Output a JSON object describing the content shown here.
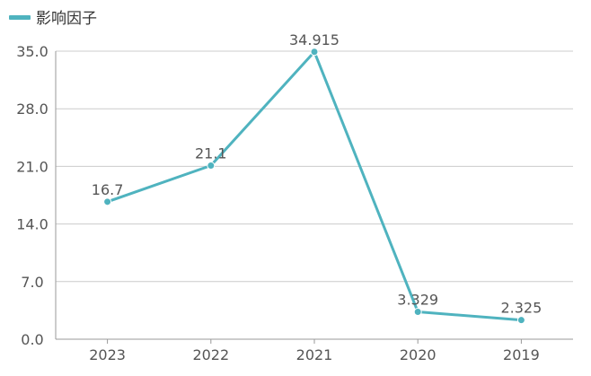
{
  "chart_data": {
    "type": "line",
    "title": "",
    "xlabel": "",
    "ylabel": "",
    "categories": [
      "2023",
      "2022",
      "2021",
      "2020",
      "2019"
    ],
    "series": [
      {
        "name": "影响因子",
        "values": [
          16.7,
          21.1,
          34.915,
          3.329,
          2.325
        ],
        "value_labels": [
          "16.7",
          "21.1",
          "34.915",
          "3.329",
          "2.325"
        ],
        "color": "#4fb3bf"
      }
    ],
    "ylim": [
      0,
      35
    ],
    "yticks": [
      "0.0",
      "7.0",
      "14.0",
      "21.0",
      "28.0",
      "35.0"
    ],
    "grid": true,
    "legend": "top-left"
  }
}
